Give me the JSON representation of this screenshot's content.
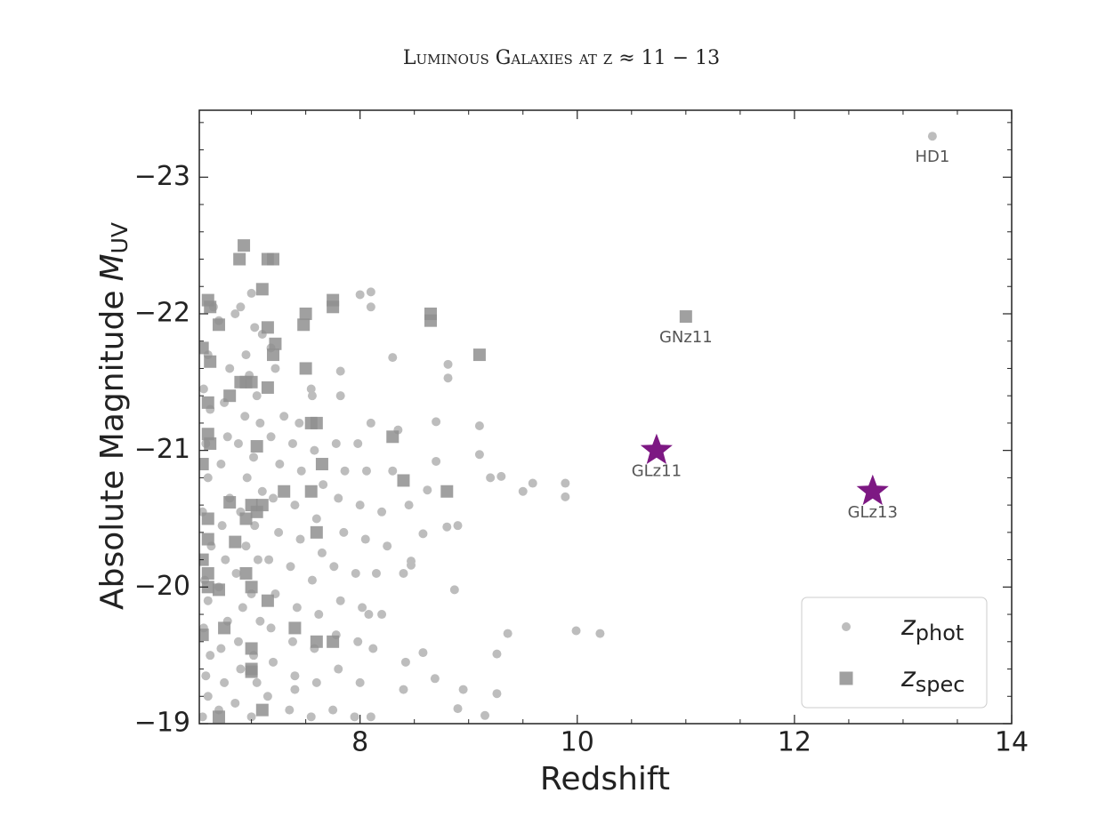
{
  "chart_data": {
    "type": "scatter",
    "title": "Luminous Galaxies at z ≈ 11 − 13",
    "xlabel": "Redshift",
    "ylabel": {
      "text": "Absolute Magnitude",
      "symbol": "M",
      "subscript": "UV"
    },
    "xlim": [
      6.52,
      14
    ],
    "ylim": [
      -19,
      -23.49
    ],
    "xticks": [
      8,
      10,
      12,
      14
    ],
    "yticks": [
      {
        "value": -19,
        "label": "−19"
      },
      {
        "value": -20,
        "label": "−20"
      },
      {
        "value": -21,
        "label": "−21"
      },
      {
        "value": -22,
        "label": "−22"
      },
      {
        "value": -23,
        "label": "−23"
      }
    ],
    "xminorticks": [
      7,
      7.5,
      8.5,
      9,
      9.5,
      10.5,
      11,
      11.5,
      12.5,
      13,
      13.5
    ],
    "yminorticks": [
      -19.2,
      -19.4,
      -19.6,
      -19.8,
      -20.2,
      -20.4,
      -20.6,
      -20.8,
      -21.2,
      -21.4,
      -21.6,
      -21.8,
      -22.2,
      -22.4,
      -22.6,
      -22.8,
      -23.2,
      -23.4
    ],
    "legend": "lower right",
    "series": [
      {
        "name": "z",
        "subscript": "phot",
        "marker": "circle",
        "color": "#bdbdbd",
        "x": [
          6.55,
          6.6,
          6.58,
          6.62,
          6.56,
          6.6,
          6.57,
          6.63,
          6.55,
          6.6,
          6.58,
          6.62,
          6.56,
          6.6,
          6.7,
          6.65,
          6.7,
          6.75,
          6.72,
          6.78,
          6.7,
          6.76,
          6.73,
          6.8,
          6.72,
          6.78,
          6.75,
          6.8,
          6.85,
          6.9,
          6.85,
          6.9,
          6.88,
          6.92,
          6.86,
          6.95,
          6.9,
          6.96,
          6.88,
          6.94,
          6.98,
          6.95,
          7.0,
          7.05,
          7.02,
          7.08,
          7.0,
          7.06,
          7.03,
          7.1,
          7.02,
          7.08,
          7.05,
          7.1,
          7.0,
          7.03,
          7.15,
          7.2,
          7.18,
          7.22,
          7.16,
          7.25,
          7.2,
          7.26,
          7.18,
          7.3,
          7.22,
          7.18,
          7.35,
          7.4,
          7.38,
          7.42,
          7.36,
          7.45,
          7.4,
          7.46,
          7.38,
          7.44,
          7.4,
          7.55,
          7.6,
          7.58,
          7.62,
          7.56,
          7.65,
          7.6,
          7.66,
          7.58,
          7.55,
          7.56,
          7.75,
          7.8,
          7.78,
          7.82,
          7.76,
          7.85,
          7.8,
          7.86,
          7.78,
          7.82,
          7.82,
          7.95,
          8.0,
          7.98,
          8.02,
          7.96,
          8.05,
          8.0,
          8.06,
          7.98,
          8.1,
          8.08,
          8.1,
          8.12,
          8.2,
          8.15,
          8.25,
          8.2,
          8.3,
          8.35,
          8.4,
          8.42,
          8.4,
          8.45,
          9.89,
          9.89,
          9.59,
          9.5,
          9.3,
          9.2,
          9.99,
          10.21,
          9.36,
          9.26,
          9.26,
          9.15,
          8.95,
          8.9,
          9.1,
          9.1,
          8.81,
          8.81,
          8.3,
          8.7,
          8.7,
          8.87,
          8.9,
          8.8,
          8.58,
          8.47,
          8.47,
          8.62,
          8.58,
          8.69,
          8.1,
          8.0,
          8.1,
          13.27
        ],
        "values": [
          -19.05,
          -19.2,
          -19.35,
          -19.5,
          -19.7,
          -19.9,
          -20.05,
          -20.3,
          -20.55,
          -20.8,
          -21.05,
          -21.3,
          -21.45,
          -21.7,
          -21.95,
          -22.05,
          -19.1,
          -19.3,
          -19.55,
          -19.75,
          -20.0,
          -20.2,
          -20.45,
          -20.65,
          -20.9,
          -21.1,
          -21.35,
          -21.6,
          -22.0,
          -22.05,
          -19.15,
          -19.4,
          -19.6,
          -19.85,
          -20.1,
          -20.3,
          -20.55,
          -20.8,
          -21.05,
          -21.25,
          -21.55,
          -21.7,
          -19.05,
          -19.3,
          -19.5,
          -19.75,
          -19.95,
          -20.2,
          -20.45,
          -20.7,
          -20.95,
          -21.2,
          -21.4,
          -21.85,
          -22.15,
          -21.9,
          -19.2,
          -19.45,
          -19.7,
          -19.95,
          -20.2,
          -20.4,
          -20.65,
          -20.9,
          -21.1,
          -21.25,
          -21.6,
          -21.75,
          -19.1,
          -19.35,
          -19.6,
          -19.85,
          -20.15,
          -20.35,
          -20.6,
          -20.85,
          -21.05,
          -21.2,
          -19.25,
          -19.05,
          -19.3,
          -19.55,
          -19.8,
          -20.05,
          -20.25,
          -20.5,
          -20.75,
          -21.0,
          -21.45,
          -21.4,
          -19.1,
          -19.4,
          -19.65,
          -19.9,
          -20.15,
          -20.4,
          -20.65,
          -20.85,
          -21.05,
          -21.4,
          -21.58,
          -19.05,
          -19.3,
          -19.6,
          -19.85,
          -20.1,
          -20.35,
          -20.6,
          -20.85,
          -21.05,
          -21.2,
          -19.8,
          -19.05,
          -19.55,
          -19.8,
          -20.1,
          -20.3,
          -20.55,
          -20.85,
          -21.15,
          -19.25,
          -19.45,
          -20.1,
          -20.6,
          -20.76,
          -20.66,
          -20.76,
          -20.7,
          -20.81,
          -20.8,
          -19.68,
          -19.66,
          -19.66,
          -19.51,
          -19.22,
          -19.06,
          -19.25,
          -19.11,
          -20.97,
          -21.18,
          -21.63,
          -21.53,
          -21.68,
          -21.21,
          -20.92,
          -19.98,
          -20.45,
          -20.44,
          -20.39,
          -20.19,
          -20.16,
          -20.71,
          -19.52,
          -19.33,
          -22.16,
          -22.14,
          -22.05,
          -23.3
        ]
      },
      {
        "name": "z",
        "subscript": "spec",
        "marker": "square",
        "color": "#8f8f8f",
        "x": [
          6.93,
          6.89,
          7.15,
          7.2,
          6.6,
          6.62,
          7.1,
          6.7,
          7.75,
          7.75,
          7.5,
          7.48,
          7.15,
          7.22,
          7.2,
          6.62,
          6.55,
          7.5,
          6.9,
          6.95,
          7.0,
          7.15,
          6.8,
          6.6,
          7.55,
          7.6,
          6.6,
          6.62,
          7.05,
          8.3,
          7.65,
          6.55,
          8.4,
          7.3,
          7.55,
          8.8,
          6.8,
          7.0,
          7.1,
          7.05,
          6.95,
          6.6,
          7.6,
          6.6,
          6.85,
          6.55,
          6.6,
          6.95,
          6.6,
          7.0,
          6.7,
          7.15,
          6.75,
          6.55,
          7.4,
          7.6,
          7.75,
          7.0,
          7.0,
          7.0,
          7.1,
          6.7,
          8.65,
          8.65,
          9.1,
          11.0
        ],
        "values": [
          -22.5,
          -22.4,
          -22.4,
          -22.4,
          -22.1,
          -22.05,
          -22.18,
          -21.92,
          -22.1,
          -22.05,
          -22.0,
          -21.92,
          -21.9,
          -21.78,
          -21.7,
          -21.65,
          -21.75,
          -21.6,
          -21.5,
          -21.5,
          -21.5,
          -21.46,
          -21.4,
          -21.35,
          -21.2,
          -21.2,
          -21.12,
          -21.05,
          -21.03,
          -21.1,
          -20.9,
          -20.9,
          -20.78,
          -20.7,
          -20.7,
          -20.7,
          -20.62,
          -20.6,
          -20.6,
          -20.55,
          -20.5,
          -20.5,
          -20.4,
          -20.35,
          -20.33,
          -20.2,
          -20.1,
          -20.1,
          -20.0,
          -20.0,
          -19.98,
          -19.9,
          -19.7,
          -19.65,
          -19.7,
          -19.6,
          -19.6,
          -19.55,
          -19.4,
          -19.38,
          -19.1,
          -19.05,
          -22.0,
          -21.95,
          -21.7,
          -21.98
        ]
      },
      {
        "marker": "star",
        "color": "#7d1883",
        "x": [
          10.73,
          12.72
        ],
        "values": [
          -21.0,
          -20.7
        ]
      }
    ],
    "annotations": [
      {
        "text": "HD1",
        "x": 13.27,
        "y": -23.3
      },
      {
        "text": "GNz11",
        "x": 11.0,
        "y": -21.98
      },
      {
        "text": "GLz11",
        "x": 10.73,
        "y": -21.0
      },
      {
        "text": "GLz13",
        "x": 12.72,
        "y": -20.7
      }
    ]
  }
}
